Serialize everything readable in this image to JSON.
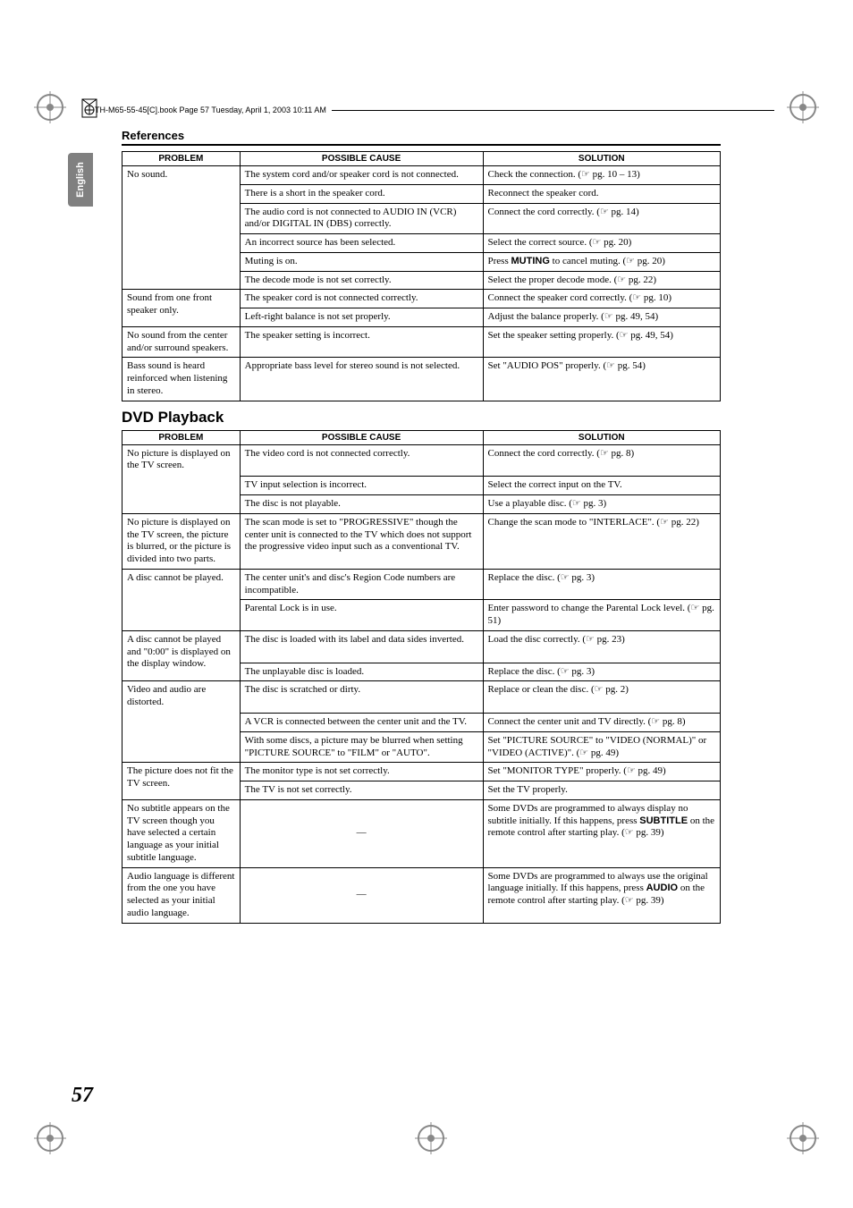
{
  "header": {
    "filename_line": "TH-M65-55-45[C].book  Page 57  Tuesday, April 1, 2003  10:11 AM"
  },
  "side_tab": {
    "label": "English"
  },
  "section_title": "References",
  "page_number": "57",
  "ref_glyph": "☞",
  "table1": {
    "headers": [
      "PROBLEM",
      "POSSIBLE CAUSE",
      "SOLUTION"
    ],
    "groups": [
      {
        "problem": "No sound.",
        "rows": [
          {
            "cause": "The system cord and/or speaker cord is not connected.",
            "solution": "Check the connection. (☞ pg. 10 – 13)"
          },
          {
            "cause": "There is a short in the speaker cord.",
            "solution": "Reconnect the speaker cord."
          },
          {
            "cause": "The audio cord is not connected to AUDIO IN (VCR) and/or DIGITAL IN (DBS) correctly.",
            "solution": "Connect the cord correctly. (☞ pg. 14)"
          },
          {
            "cause": "An incorrect source has been selected.",
            "solution": "Select the correct source. (☞ pg. 20)"
          },
          {
            "cause": "Muting is on.",
            "solution_html": "Press <b>MUTING</b> to cancel muting. (☞ pg. 20)"
          },
          {
            "cause": "The decode mode is not set correctly.",
            "solution": "Select the proper decode mode. (☞ pg. 22)"
          }
        ]
      },
      {
        "problem": "Sound from one front speaker only.",
        "rows": [
          {
            "cause": "The speaker cord is not connected correctly.",
            "solution": "Connect the speaker cord correctly. (☞ pg. 10)"
          },
          {
            "cause": "Left-right balance is not set properly.",
            "solution": "Adjust the balance properly. (☞ pg. 49,  54)"
          }
        ]
      },
      {
        "problem": "No sound from the center and/or surround speakers.",
        "rows": [
          {
            "cause": "The speaker setting is incorrect.",
            "solution": "Set the speaker setting properly. (☞ pg. 49,  54)"
          }
        ]
      },
      {
        "problem": "Bass sound is heard reinforced when listening in stereo.",
        "rows": [
          {
            "cause": "Appropriate bass level for stereo sound is not selected.",
            "solution": "Set \"AUDIO POS\" properly. (☞ pg. 54)"
          }
        ]
      }
    ]
  },
  "subhead_dvd": "DVD Playback",
  "table2": {
    "headers": [
      "PROBLEM",
      "POSSIBLE CAUSE",
      "SOLUTION"
    ],
    "groups": [
      {
        "problem": "No picture is displayed on the TV screen.",
        "rows": [
          {
            "cause": "The video cord is not connected correctly.",
            "solution": "Connect the cord correctly. (☞ pg. 8)",
            "tall": true
          },
          {
            "cause": "TV input selection is incorrect.",
            "solution": "Select the correct input on the TV."
          },
          {
            "cause": "The disc is not playable.",
            "solution": "Use a playable disc. (☞ pg. 3)"
          }
        ]
      },
      {
        "problem": "No picture is displayed on the TV screen, the picture is blurred, or the picture is divided into two parts.",
        "rows": [
          {
            "cause": "The scan mode is set to \"PROGRESSIVE\" though the center unit is connected to the TV which does not support the progressive video input such as a conventional TV.",
            "solution": "Change the scan mode to \"INTERLACE\". (☞ pg. 22)"
          }
        ]
      },
      {
        "problem": "A disc cannot be played.",
        "rows": [
          {
            "cause": "The center unit's and disc's Region Code numbers are incompatible.",
            "solution": "Replace the disc. (☞ pg. 3)"
          },
          {
            "cause": "Parental Lock is in use.",
            "solution": "Enter password to change the Parental Lock level. (☞ pg. 51)"
          }
        ]
      },
      {
        "problem": "A disc cannot be played and \"0:00\" is displayed on the display window.",
        "rows": [
          {
            "cause": "The disc is loaded with its label and data sides inverted.",
            "solution": "Load the disc correctly. (☞ pg. 23)",
            "tall": true
          },
          {
            "cause": "The unplayable disc is loaded.",
            "solution": "Replace the disc. (☞ pg. 3)"
          }
        ]
      },
      {
        "problem": "Video and audio are distorted.",
        "rows": [
          {
            "cause": "The disc is scratched or dirty.",
            "solution": "Replace or clean the disc. (☞ pg. 2)",
            "tall": true
          },
          {
            "cause": "A VCR is connected between the center unit and the TV.",
            "solution": "Connect the center unit and TV directly. (☞ pg. 8)"
          },
          {
            "cause": "With some discs, a picture may be blurred when setting \"PICTURE SOURCE\" to \"FILM\" or \"AUTO\".",
            "solution": "Set \"PICTURE SOURCE\" to \"VIDEO (NORMAL)\" or \"VIDEO (ACTIVE)\". (☞ pg. 49)"
          }
        ]
      },
      {
        "problem": "The picture does not fit the TV screen.",
        "rows": [
          {
            "cause": "The monitor type is not set correctly.",
            "solution": "Set \"MONITOR TYPE\" properly. (☞ pg. 49)"
          },
          {
            "cause": "The TV is not set correctly.",
            "solution": "Set the TV properly."
          }
        ]
      },
      {
        "problem": "No subtitle appears on the TV screen though you have selected a certain language as your initial subtitle language.",
        "rows": [
          {
            "cause": "—",
            "cause_center": true,
            "solution_html": "Some DVDs are programmed to always display no subtitle initially. If this happens, press <b>SUBTITLE</b> on the remote control after starting play. (☞ pg. 39)"
          }
        ]
      },
      {
        "problem": "Audio language is different from the one you have selected as your initial audio language.",
        "rows": [
          {
            "cause": "—",
            "cause_center": true,
            "solution_html": "Some DVDs are programmed to always use the original language initially. If this happens, press <b>AUDIO</b> on the remote control after starting play. (☞ pg. 39)"
          }
        ]
      }
    ]
  },
  "colors": {
    "tab_bg": "#808080",
    "tab_text": "#ffffff",
    "rule": "#000000"
  }
}
